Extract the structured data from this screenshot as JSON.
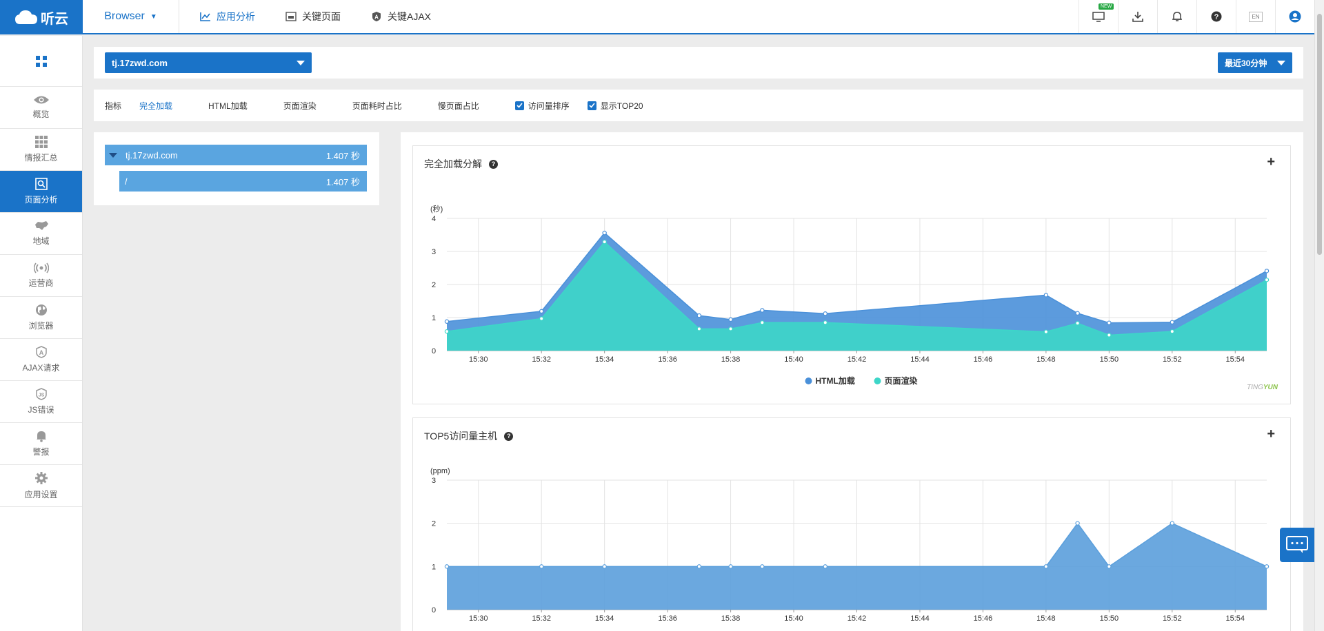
{
  "brand": {
    "name": "听云"
  },
  "product": {
    "label": "Browser"
  },
  "topnav": [
    {
      "label": "应用分析",
      "active": true
    },
    {
      "label": "关键页面",
      "active": false
    },
    {
      "label": "关键AJAX",
      "active": false
    }
  ],
  "top_icons": {
    "new_badge": "NEW",
    "lang": "EN"
  },
  "sidebar": {
    "items": [
      {
        "label": "概览",
        "icon": "eye-icon"
      },
      {
        "label": "情报汇总",
        "icon": "grid-icon"
      },
      {
        "label": "页面分析",
        "icon": "page-search-icon",
        "active": true
      },
      {
        "label": "地域",
        "icon": "map-icon"
      },
      {
        "label": "运营商",
        "icon": "signal-icon"
      },
      {
        "label": "浏览器",
        "icon": "globe-icon"
      },
      {
        "label": "AJAX请求",
        "icon": "ajax-icon"
      },
      {
        "label": "JS错误",
        "icon": "js-icon"
      },
      {
        "label": "警报",
        "icon": "bell-icon"
      },
      {
        "label": "应用设置",
        "icon": "gear-icon"
      }
    ]
  },
  "filter": {
    "host": "tj.17zwd.com",
    "time_range": "最近30分钟"
  },
  "metrics": {
    "label": "指标",
    "tabs": [
      {
        "label": "完全加载",
        "active": true
      },
      {
        "label": "HTML加载"
      },
      {
        "label": "页面渲染"
      },
      {
        "label": "页面耗时占比"
      },
      {
        "label": "慢页面占比"
      }
    ],
    "checks": [
      {
        "label": "访问量排序",
        "checked": true
      },
      {
        "label": "显示TOP20",
        "checked": true
      }
    ]
  },
  "tree": [
    {
      "name": "tj.17zwd.com",
      "value": "1.407 秒"
    },
    {
      "name": "/",
      "value": "1.407 秒"
    }
  ],
  "watermark": {
    "a": "TING",
    "b": "YUN"
  },
  "colors": {
    "accent": "#1a73c8",
    "html": "#4a90d9",
    "render": "#3dd6c8",
    "visits": "#5b9fdc"
  },
  "chart_data": [
    {
      "type": "area",
      "title": "完全加载分解",
      "ylabel": "(秒)",
      "ylim": [
        0,
        4
      ],
      "yticks": [
        "0",
        "1",
        "2",
        "3",
        "4"
      ],
      "xlim": [
        "15:29",
        "15:55"
      ],
      "xticks": [
        "15:30",
        "15:32",
        "15:34",
        "15:36",
        "15:38",
        "15:40",
        "15:42",
        "15:44",
        "15:46",
        "15:48",
        "15:50",
        "15:52",
        "15:54"
      ],
      "x": [
        "15:29",
        "15:32",
        "15:34",
        "15:37",
        "15:38",
        "15:39",
        "15:41",
        "15:48",
        "15:49",
        "15:50",
        "15:52",
        "15:55"
      ],
      "stacked": false,
      "series": [
        {
          "name": "HTML加载",
          "values": [
            0.88,
            1.19,
            3.56,
            1.06,
            0.94,
            1.22,
            1.12,
            1.68,
            1.13,
            0.84,
            0.86,
            2.41
          ]
        },
        {
          "name": "页面渲染",
          "values": [
            0.58,
            0.97,
            3.29,
            0.66,
            0.66,
            0.85,
            0.85,
            0.57,
            0.83,
            0.47,
            0.58,
            2.14
          ]
        }
      ],
      "legend": "bottom-center"
    },
    {
      "type": "area",
      "title": "TOP5访问量主机",
      "ylabel": "(ppm)",
      "ylim": [
        0,
        3
      ],
      "yticks": [
        "0",
        "1",
        "2",
        "3"
      ],
      "xlim": [
        "15:29",
        "15:55"
      ],
      "xticks": [
        "15:30",
        "15:32",
        "15:34",
        "15:36",
        "15:38",
        "15:40",
        "15:42",
        "15:44",
        "15:46",
        "15:48",
        "15:50",
        "15:52",
        "15:54"
      ],
      "x": [
        "15:29",
        "15:32",
        "15:34",
        "15:37",
        "15:38",
        "15:39",
        "15:41",
        "15:48",
        "15:49",
        "15:50",
        "15:52",
        "15:55"
      ],
      "series": [
        {
          "values": [
            1,
            1,
            1,
            1,
            1,
            1,
            1,
            1,
            2,
            1,
            2,
            1
          ]
        }
      ]
    }
  ]
}
